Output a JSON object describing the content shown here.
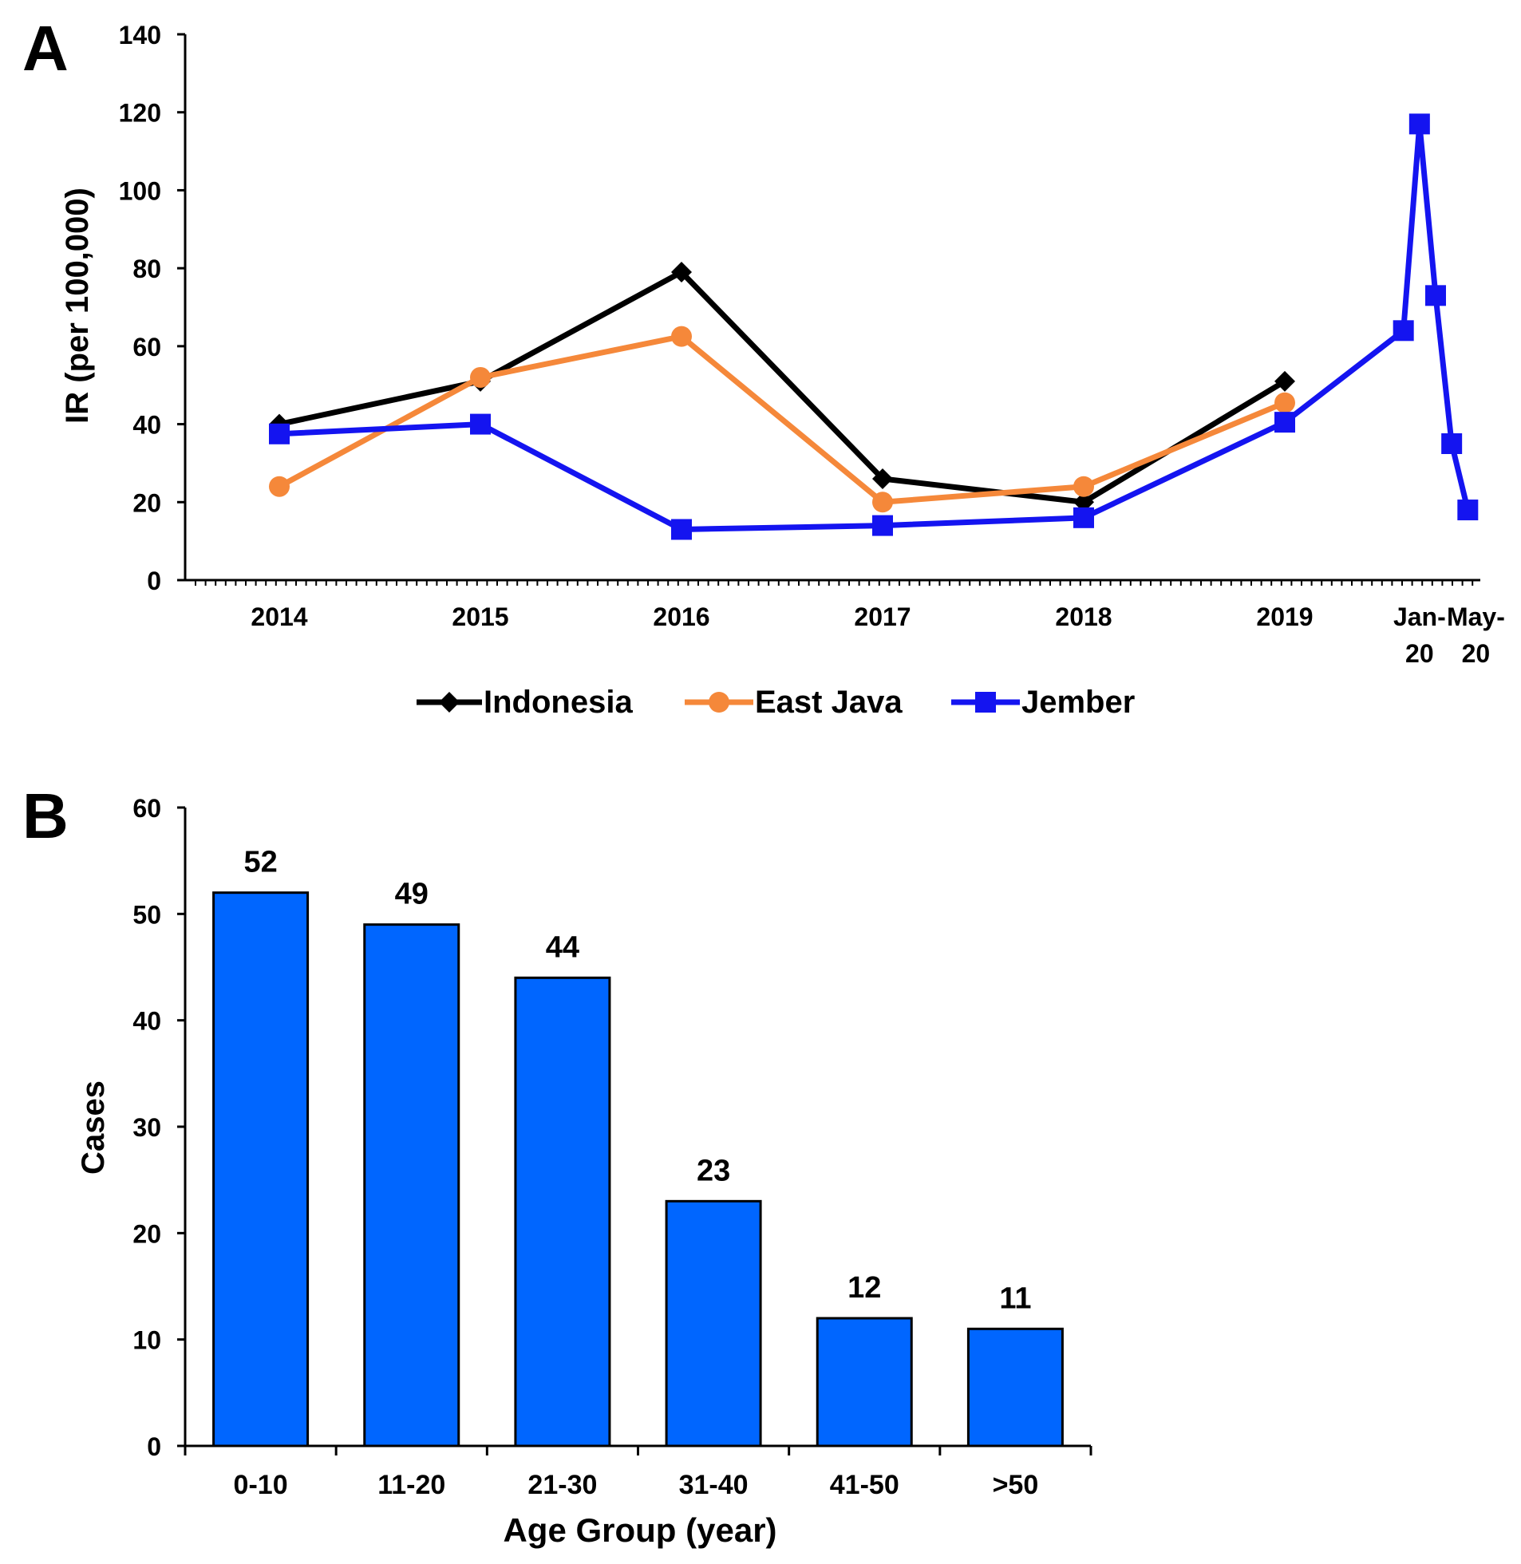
{
  "chart_data": [
    {
      "panel_label": "A",
      "type": "line",
      "ylabel": "IR (per 100,000)",
      "xlabel": "",
      "ylim": [
        0,
        140
      ],
      "yticks": [
        0,
        20,
        40,
        60,
        80,
        100,
        120,
        140
      ],
      "grid": false,
      "legend_position": "bottom-center",
      "x_labels": [
        {
          "x": 0,
          "lines": [
            "2014"
          ]
        },
        {
          "x": 1,
          "lines": [
            "2015"
          ]
        },
        {
          "x": 2,
          "lines": [
            "2016"
          ]
        },
        {
          "x": 3,
          "lines": [
            "2017"
          ]
        },
        {
          "x": 4,
          "lines": [
            "2018"
          ]
        },
        {
          "x": 5,
          "lines": [
            "2019"
          ]
        },
        {
          "x": 5.67,
          "lines": [
            "Jan-",
            "20"
          ]
        },
        {
          "x": 5.95,
          "lines": [
            "May-",
            "20"
          ]
        }
      ],
      "series": [
        {
          "name": "Indonesia",
          "color": "#000000",
          "marker": "diamond",
          "points": [
            [
              0,
              40
            ],
            [
              1,
              51
            ],
            [
              2,
              79
            ],
            [
              3,
              26
            ],
            [
              4,
              20
            ],
            [
              5,
              51
            ]
          ]
        },
        {
          "name": "East Java",
          "color": "#f5883a",
          "marker": "circle",
          "points": [
            [
              0,
              24
            ],
            [
              1,
              52
            ],
            [
              2,
              62.5
            ],
            [
              3,
              20
            ],
            [
              4,
              24
            ],
            [
              5,
              45.5
            ]
          ]
        },
        {
          "name": "Jember",
          "color": "#1414f0",
          "marker": "square",
          "points": [
            [
              0,
              37.5
            ],
            [
              1,
              40
            ],
            [
              2,
              13
            ],
            [
              3,
              14
            ],
            [
              4,
              16
            ],
            [
              5,
              40.5
            ],
            [
              5.59,
              64
            ],
            [
              5.67,
              117
            ],
            [
              5.75,
              73
            ],
            [
              5.83,
              35
            ],
            [
              5.91,
              18
            ]
          ]
        }
      ]
    },
    {
      "panel_label": "B",
      "type": "bar",
      "categories": [
        "0-10",
        "11-20",
        "21-30",
        "31-40",
        "41-50",
        ">50"
      ],
      "values": [
        52,
        49,
        44,
        23,
        12,
        11
      ],
      "data_labels": [
        "52",
        "49",
        "44",
        "23",
        "12",
        "11"
      ],
      "xlabel": "Age Group (year)",
      "ylabel": "Cases",
      "ylim": [
        0,
        60
      ],
      "yticks": [
        0,
        10,
        20,
        30,
        40,
        50,
        60
      ],
      "grid": false,
      "bar_color": "#0066ff"
    }
  ]
}
